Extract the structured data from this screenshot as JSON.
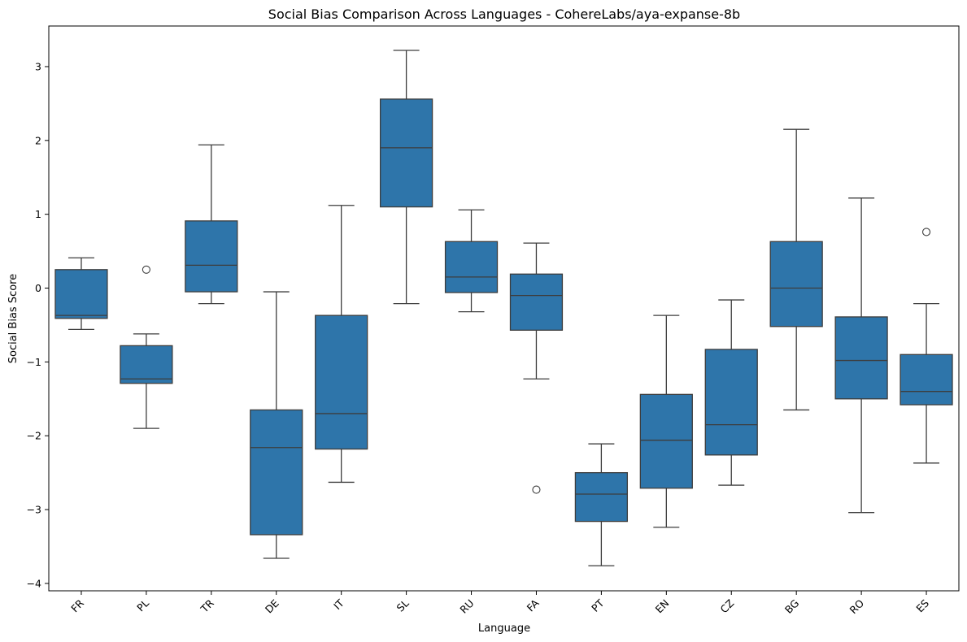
{
  "chart_data": {
    "type": "box",
    "title": "Social Bias Comparison Across Languages - CohereLabs/aya-expanse-8b",
    "xlabel": "Language",
    "ylabel": "Social Bias Score",
    "ylim": [
      -4.1,
      3.55
    ],
    "yticks": [
      -4,
      -3,
      -2,
      -1,
      0,
      1,
      2,
      3
    ],
    "ytick_labels": [
      "−4",
      "−3",
      "−2",
      "−1",
      "0",
      "1",
      "2",
      "3"
    ],
    "grid": false,
    "box_color": "#2e75aa",
    "line_color": "#3d3d3d",
    "categories": [
      "FR",
      "PL",
      "TR",
      "DE",
      "IT",
      "SL",
      "RU",
      "FA",
      "PT",
      "EN",
      "CZ",
      "BG",
      "RO",
      "ES"
    ],
    "boxes": [
      {
        "label": "FR",
        "whisker_low": -0.56,
        "q1": -0.41,
        "median": -0.37,
        "q3": 0.25,
        "whisker_high": 0.41,
        "outliers": []
      },
      {
        "label": "PL",
        "whisker_low": -1.9,
        "q1": -1.29,
        "median": -1.23,
        "q3": -0.78,
        "whisker_high": -0.62,
        "outliers": [
          0.25
        ]
      },
      {
        "label": "TR",
        "whisker_low": -0.21,
        "q1": -0.05,
        "median": 0.31,
        "q3": 0.91,
        "whisker_high": 1.94,
        "outliers": []
      },
      {
        "label": "DE",
        "whisker_low": -3.66,
        "q1": -3.34,
        "median": -2.16,
        "q3": -1.65,
        "whisker_high": -0.05,
        "outliers": []
      },
      {
        "label": "IT",
        "whisker_low": -2.63,
        "q1": -2.18,
        "median": -1.7,
        "q3": -0.37,
        "whisker_high": 1.12,
        "outliers": []
      },
      {
        "label": "SL",
        "whisker_low": -0.21,
        "q1": 1.1,
        "median": 1.9,
        "q3": 2.56,
        "whisker_high": 3.22,
        "outliers": []
      },
      {
        "label": "RU",
        "whisker_low": -0.32,
        "q1": -0.06,
        "median": 0.15,
        "q3": 0.63,
        "whisker_high": 1.06,
        "outliers": []
      },
      {
        "label": "FA",
        "whisker_low": -1.23,
        "q1": -0.57,
        "median": -0.1,
        "q3": 0.19,
        "whisker_high": 0.61,
        "outliers": [
          -2.73
        ]
      },
      {
        "label": "PT",
        "whisker_low": -3.76,
        "q1": -3.16,
        "median": -2.79,
        "q3": -2.5,
        "whisker_high": -2.11,
        "outliers": []
      },
      {
        "label": "EN",
        "whisker_low": -3.24,
        "q1": -2.71,
        "median": -2.06,
        "q3": -1.44,
        "whisker_high": -0.37,
        "outliers": []
      },
      {
        "label": "CZ",
        "whisker_low": -2.67,
        "q1": -2.26,
        "median": -1.85,
        "q3": -0.83,
        "whisker_high": -0.16,
        "outliers": []
      },
      {
        "label": "BG",
        "whisker_low": -1.65,
        "q1": -0.52,
        "median": 0.0,
        "q3": 0.63,
        "whisker_high": 2.15,
        "outliers": []
      },
      {
        "label": "RO",
        "whisker_low": -3.04,
        "q1": -1.5,
        "median": -0.98,
        "q3": -0.39,
        "whisker_high": 1.22,
        "outliers": []
      },
      {
        "label": "ES",
        "whisker_low": -2.37,
        "q1": -1.58,
        "median": -1.4,
        "q3": -0.9,
        "whisker_high": -0.21,
        "outliers": [
          0.76
        ]
      }
    ]
  }
}
